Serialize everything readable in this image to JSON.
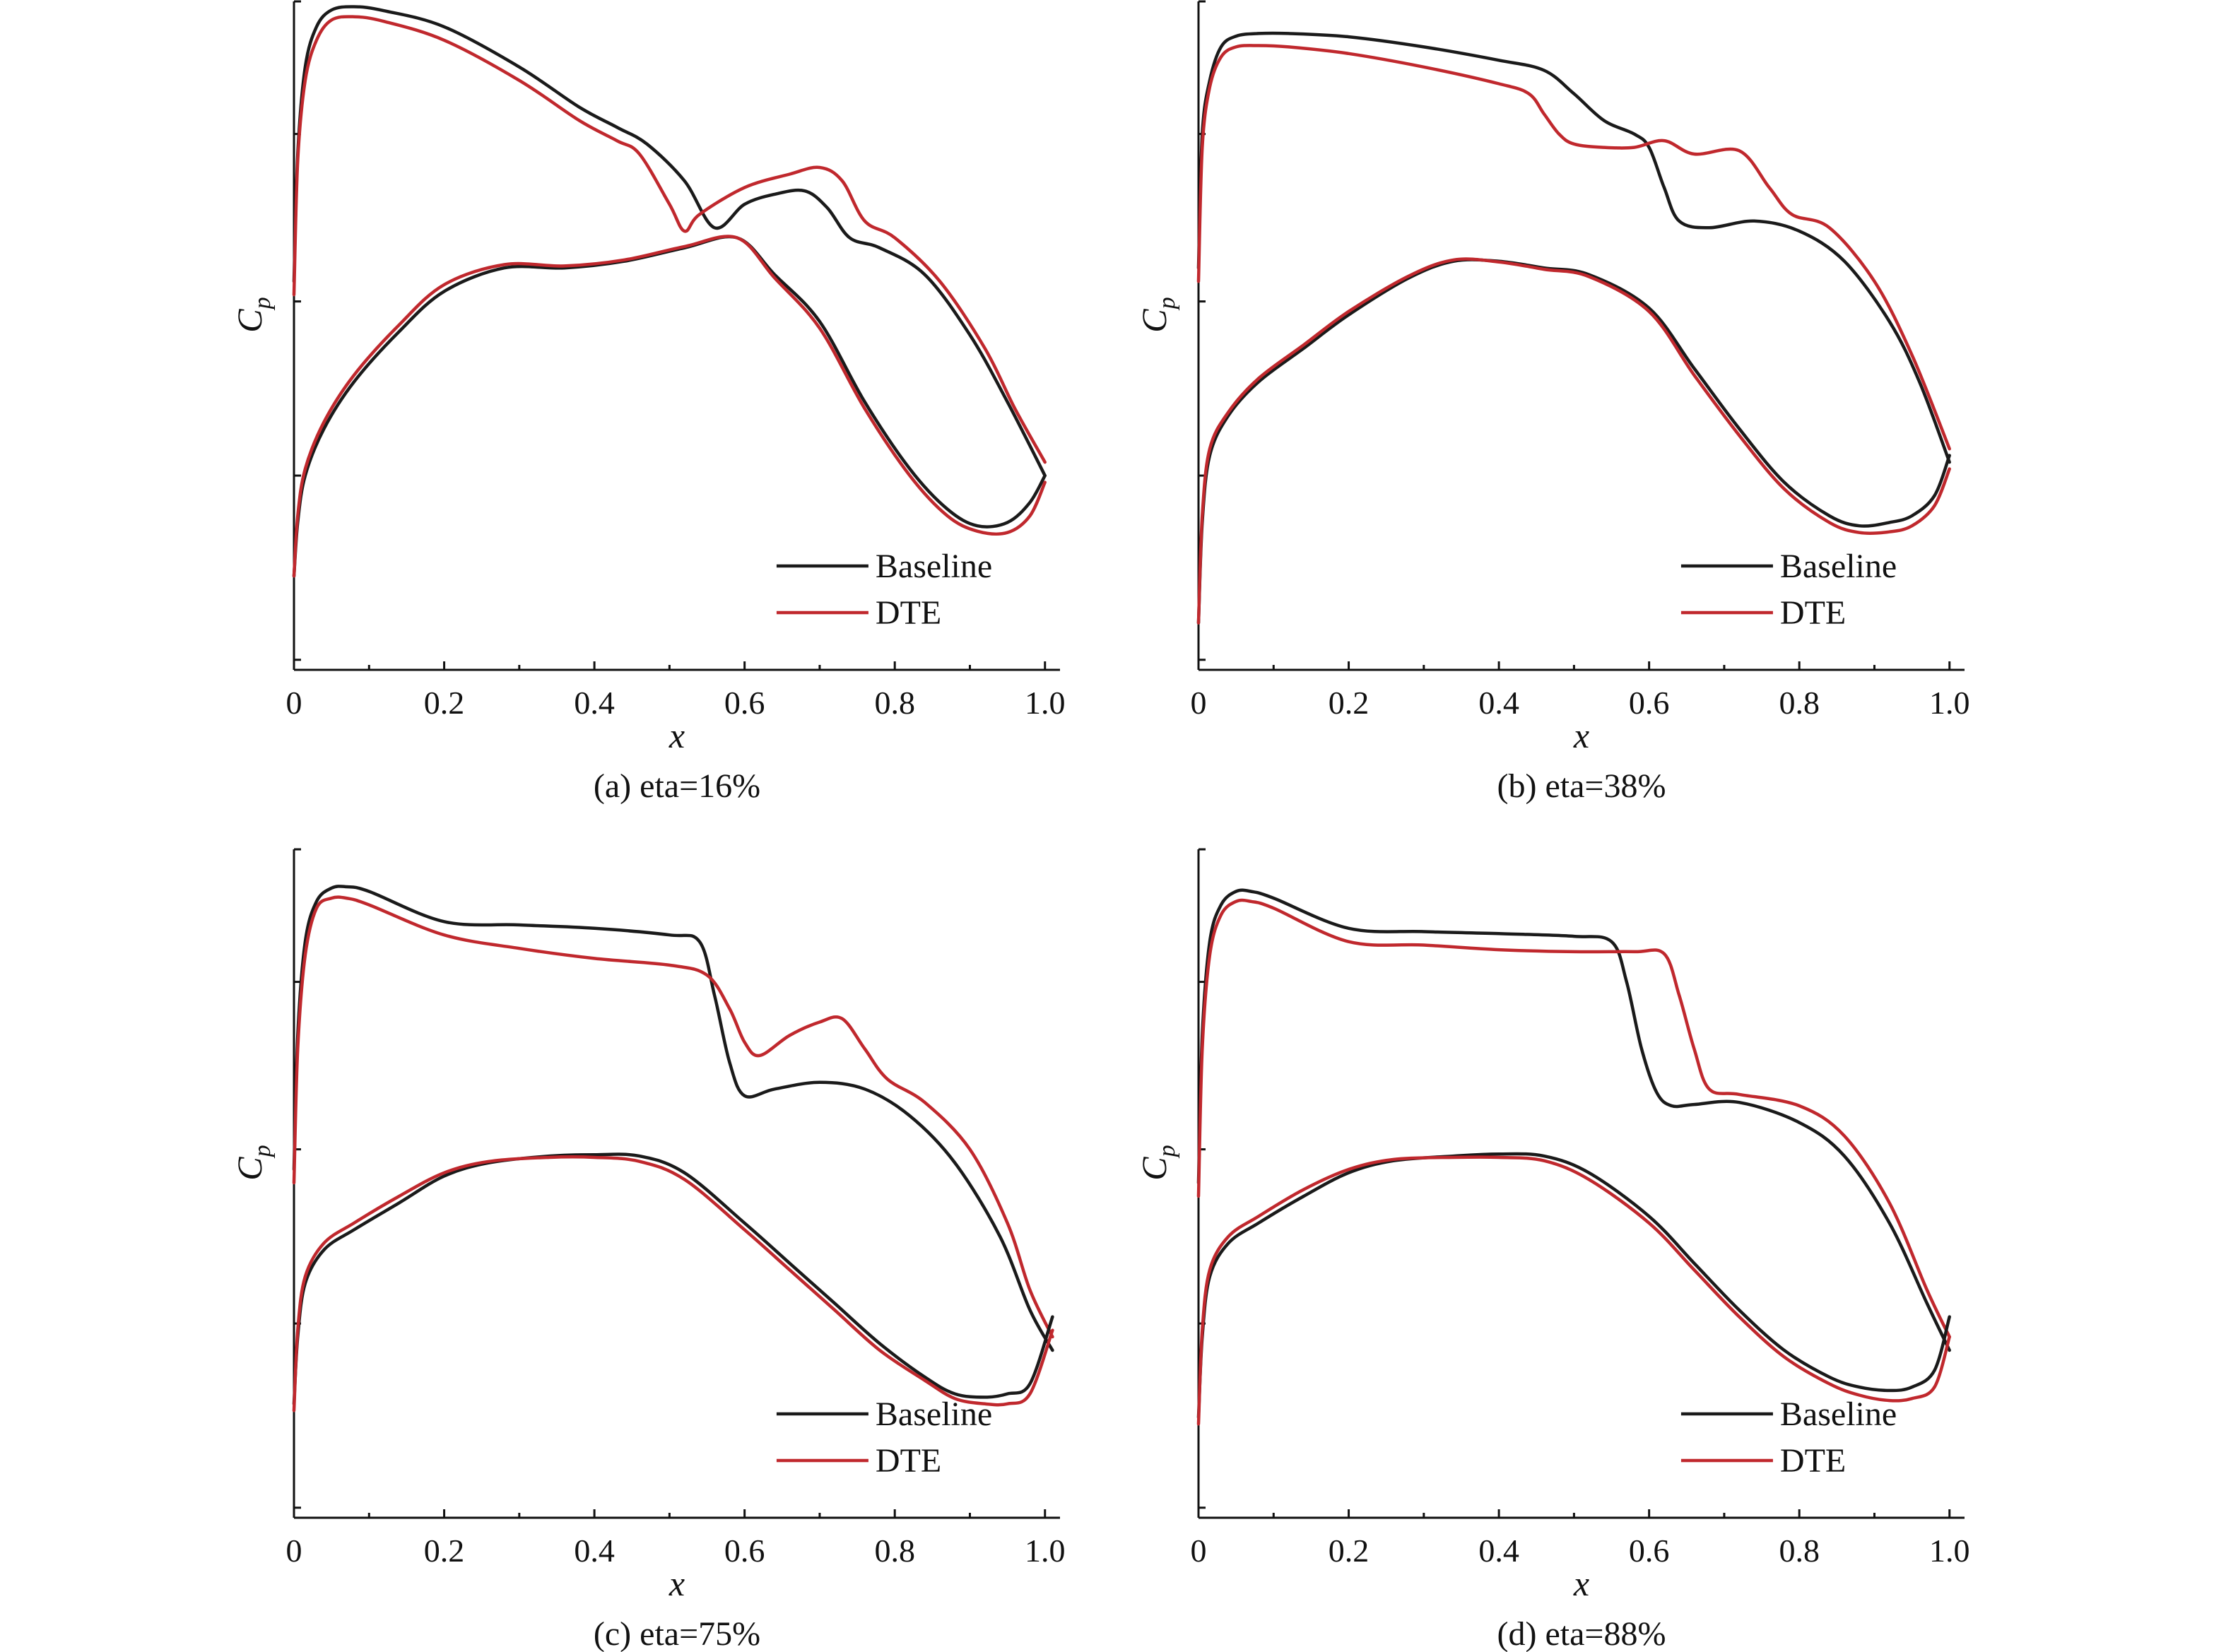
{
  "colors": {
    "baseline": "#1a1a1a",
    "dte": "#c0282d",
    "axis": "#111111"
  },
  "chart_data": [
    {
      "type": "line",
      "title": "(a) eta=16%",
      "xlabel": "x",
      "ylabel": "C",
      "ylabel_sub": "p",
      "xlim": [
        0,
        1.0
      ],
      "ylim": [
        0,
        1
      ],
      "xticks": [
        "0",
        "0.2",
        "0.4",
        "0.6",
        "0.8",
        "1.0"
      ],
      "legend": {
        "position": "bottom-right",
        "entries": [
          "Baseline",
          "DTE"
        ]
      },
      "series": [
        {
          "name": "Baseline",
          "surface": "upper",
          "x": [
            0,
            0.005,
            0.015,
            0.03,
            0.05,
            0.08,
            0.12,
            0.2,
            0.3,
            0.38,
            0.43,
            0.47,
            0.52,
            0.56,
            0.6,
            0.64,
            0.68,
            0.71,
            0.74,
            0.78,
            0.84,
            0.9,
            0.95,
            1.0
          ],
          "y": [
            0.58,
            0.77,
            0.9,
            0.96,
            0.985,
            0.99,
            0.984,
            0.96,
            0.9,
            0.84,
            0.81,
            0.785,
            0.73,
            0.66,
            0.695,
            0.71,
            0.715,
            0.69,
            0.645,
            0.63,
            0.59,
            0.5,
            0.4,
            0.29
          ]
        },
        {
          "name": "DTE",
          "surface": "upper",
          "x": [
            0,
            0.005,
            0.015,
            0.03,
            0.05,
            0.08,
            0.12,
            0.2,
            0.3,
            0.38,
            0.43,
            0.46,
            0.5,
            0.52,
            0.54,
            0.6,
            0.66,
            0.7,
            0.73,
            0.76,
            0.8,
            0.86,
            0.92,
            0.96,
            1.0
          ],
          "y": [
            0.56,
            0.76,
            0.88,
            0.94,
            0.97,
            0.975,
            0.968,
            0.94,
            0.88,
            0.82,
            0.79,
            0.77,
            0.695,
            0.655,
            0.68,
            0.72,
            0.74,
            0.75,
            0.73,
            0.67,
            0.645,
            0.58,
            0.48,
            0.39,
            0.31
          ]
        },
        {
          "name": "Baseline",
          "surface": "lower",
          "x": [
            0,
            0.005,
            0.015,
            0.04,
            0.08,
            0.14,
            0.2,
            0.28,
            0.36,
            0.44,
            0.52,
            0.59,
            0.64,
            0.7,
            0.76,
            0.82,
            0.87,
            0.91,
            0.95,
            0.98,
            1.0
          ],
          "y": [
            0.14,
            0.22,
            0.29,
            0.36,
            0.43,
            0.505,
            0.565,
            0.6,
            0.6,
            0.61,
            0.63,
            0.645,
            0.59,
            0.52,
            0.4,
            0.3,
            0.24,
            0.215,
            0.22,
            0.25,
            0.29
          ]
        },
        {
          "name": "DTE",
          "surface": "lower",
          "x": [
            0,
            0.005,
            0.015,
            0.04,
            0.08,
            0.14,
            0.2,
            0.28,
            0.36,
            0.44,
            0.52,
            0.59,
            0.64,
            0.7,
            0.76,
            0.82,
            0.87,
            0.91,
            0.95,
            0.98,
            1.0
          ],
          "y": [
            0.14,
            0.23,
            0.3,
            0.37,
            0.44,
            0.515,
            0.575,
            0.605,
            0.603,
            0.612,
            0.632,
            0.645,
            0.585,
            0.51,
            0.39,
            0.29,
            0.23,
            0.207,
            0.205,
            0.23,
            0.28
          ]
        }
      ]
    },
    {
      "type": "line",
      "title": "(b) eta=38%",
      "xlabel": "x",
      "ylabel": "C",
      "ylabel_sub": "p",
      "xlim": [
        0,
        1.0
      ],
      "ylim": [
        0,
        1
      ],
      "xticks": [
        "0",
        "0.2",
        "0.4",
        "0.6",
        "0.8",
        "1.0"
      ],
      "legend": {
        "position": "bottom-right",
        "entries": [
          "Baseline",
          "DTE"
        ]
      },
      "series": [
        {
          "name": "Baseline",
          "surface": "upper",
          "x": [
            0,
            0.005,
            0.015,
            0.03,
            0.05,
            0.08,
            0.12,
            0.2,
            0.3,
            0.4,
            0.46,
            0.5,
            0.54,
            0.58,
            0.6,
            0.62,
            0.64,
            0.68,
            0.74,
            0.8,
            0.86,
            0.92,
            0.96,
            1.0
          ],
          "y": [
            0.6,
            0.8,
            0.88,
            0.93,
            0.946,
            0.95,
            0.95,
            0.945,
            0.93,
            0.91,
            0.895,
            0.86,
            0.82,
            0.8,
            0.78,
            0.72,
            0.67,
            0.66,
            0.67,
            0.655,
            0.61,
            0.52,
            0.43,
            0.31
          ]
        },
        {
          "name": "DTE",
          "surface": "upper",
          "x": [
            0,
            0.005,
            0.015,
            0.03,
            0.05,
            0.08,
            0.12,
            0.2,
            0.3,
            0.4,
            0.44,
            0.46,
            0.48,
            0.5,
            0.54,
            0.58,
            0.62,
            0.66,
            0.72,
            0.76,
            0.79,
            0.84,
            0.9,
            0.95,
            1.0
          ],
          "y": [
            0.58,
            0.78,
            0.87,
            0.915,
            0.93,
            0.932,
            0.93,
            0.92,
            0.9,
            0.875,
            0.86,
            0.83,
            0.8,
            0.785,
            0.78,
            0.78,
            0.79,
            0.77,
            0.775,
            0.72,
            0.68,
            0.66,
            0.58,
            0.47,
            0.33
          ]
        },
        {
          "name": "Baseline",
          "surface": "lower",
          "x": [
            0,
            0.005,
            0.015,
            0.04,
            0.08,
            0.14,
            0.2,
            0.28,
            0.34,
            0.4,
            0.46,
            0.52,
            0.6,
            0.66,
            0.72,
            0.78,
            0.84,
            0.88,
            0.92,
            0.95,
            0.98,
            1.0
          ],
          "y": [
            0.07,
            0.22,
            0.32,
            0.38,
            0.43,
            0.48,
            0.53,
            0.585,
            0.61,
            0.61,
            0.6,
            0.59,
            0.54,
            0.45,
            0.36,
            0.28,
            0.23,
            0.215,
            0.22,
            0.23,
            0.26,
            0.32
          ]
        },
        {
          "name": "DTE",
          "surface": "lower",
          "x": [
            0,
            0.005,
            0.015,
            0.04,
            0.08,
            0.14,
            0.2,
            0.28,
            0.34,
            0.4,
            0.46,
            0.52,
            0.6,
            0.66,
            0.72,
            0.78,
            0.84,
            0.88,
            0.92,
            0.95,
            0.98,
            1.0
          ],
          "y": [
            0.07,
            0.23,
            0.33,
            0.385,
            0.435,
            0.485,
            0.535,
            0.588,
            0.612,
            0.609,
            0.598,
            0.587,
            0.535,
            0.44,
            0.35,
            0.27,
            0.22,
            0.205,
            0.206,
            0.215,
            0.245,
            0.3
          ]
        }
      ]
    },
    {
      "type": "line",
      "title": "(c) eta=75%",
      "xlabel": "x",
      "ylabel": "C",
      "ylabel_sub": "p",
      "xlim": [
        0,
        1.0
      ],
      "ylim": [
        0,
        1
      ],
      "xticks": [
        "0",
        "0.2",
        "0.4",
        "0.6",
        "0.8",
        "1.0"
      ],
      "legend": {
        "position": "bottom-right",
        "entries": [
          "Baseline",
          "DTE"
        ]
      },
      "series": [
        {
          "name": "Baseline",
          "surface": "upper",
          "x": [
            0,
            0.005,
            0.015,
            0.03,
            0.05,
            0.07,
            0.1,
            0.2,
            0.3,
            0.4,
            0.5,
            0.54,
            0.56,
            0.58,
            0.6,
            0.64,
            0.7,
            0.76,
            0.82,
            0.88,
            0.94,
            0.98,
            1.01
          ],
          "y": [
            0.52,
            0.72,
            0.86,
            0.92,
            0.94,
            0.942,
            0.935,
            0.89,
            0.885,
            0.88,
            0.87,
            0.86,
            0.78,
            0.68,
            0.63,
            0.64,
            0.65,
            0.64,
            0.6,
            0.53,
            0.42,
            0.31,
            0.25
          ]
        },
        {
          "name": "DTE",
          "surface": "upper",
          "x": [
            0,
            0.005,
            0.015,
            0.03,
            0.05,
            0.07,
            0.1,
            0.2,
            0.3,
            0.4,
            0.5,
            0.55,
            0.58,
            0.6,
            0.62,
            0.66,
            0.7,
            0.73,
            0.76,
            0.79,
            0.84,
            0.9,
            0.95,
            0.98,
            1.01
          ],
          "y": [
            0.5,
            0.7,
            0.84,
            0.91,
            0.925,
            0.925,
            0.915,
            0.87,
            0.85,
            0.835,
            0.825,
            0.81,
            0.76,
            0.71,
            0.69,
            0.72,
            0.74,
            0.745,
            0.7,
            0.655,
            0.62,
            0.55,
            0.44,
            0.34,
            0.27
          ]
        },
        {
          "name": "Baseline",
          "surface": "lower",
          "x": [
            0,
            0.005,
            0.015,
            0.04,
            0.08,
            0.14,
            0.2,
            0.26,
            0.34,
            0.4,
            0.46,
            0.52,
            0.6,
            0.66,
            0.72,
            0.78,
            0.84,
            0.88,
            0.92,
            0.95,
            0.98,
            1.01
          ],
          "y": [
            0.17,
            0.27,
            0.35,
            0.4,
            0.43,
            0.47,
            0.51,
            0.53,
            0.54,
            0.542,
            0.54,
            0.515,
            0.44,
            0.38,
            0.32,
            0.26,
            0.21,
            0.185,
            0.18,
            0.185,
            0.2,
            0.3
          ]
        },
        {
          "name": "DTE",
          "surface": "lower",
          "x": [
            0,
            0.005,
            0.015,
            0.04,
            0.08,
            0.14,
            0.2,
            0.26,
            0.34,
            0.4,
            0.46,
            0.52,
            0.6,
            0.66,
            0.72,
            0.78,
            0.84,
            0.88,
            0.92,
            0.95,
            0.98,
            1.01
          ],
          "y": [
            0.16,
            0.28,
            0.36,
            0.41,
            0.44,
            0.48,
            0.515,
            0.532,
            0.538,
            0.538,
            0.532,
            0.505,
            0.43,
            0.37,
            0.31,
            0.25,
            0.205,
            0.178,
            0.17,
            0.17,
            0.185,
            0.28
          ]
        }
      ]
    },
    {
      "type": "line",
      "title": "(d) eta=88%",
      "xlabel": "x",
      "ylabel": "C",
      "ylabel_sub": "p",
      "xlim": [
        0,
        1.0
      ],
      "ylim": [
        0,
        1
      ],
      "xticks": [
        "0",
        "0.2",
        "0.4",
        "0.6",
        "0.8",
        "1.0"
      ],
      "legend": {
        "position": "bottom-right",
        "entries": [
          "Baseline",
          "DTE"
        ]
      },
      "series": [
        {
          "name": "Baseline",
          "surface": "upper",
          "x": [
            0,
            0.005,
            0.015,
            0.03,
            0.05,
            0.07,
            0.1,
            0.2,
            0.3,
            0.4,
            0.5,
            0.55,
            0.57,
            0.59,
            0.61,
            0.63,
            0.66,
            0.72,
            0.8,
            0.86,
            0.92,
            0.97,
            1.0
          ],
          "y": [
            0.5,
            0.72,
            0.86,
            0.915,
            0.935,
            0.935,
            0.925,
            0.88,
            0.875,
            0.872,
            0.868,
            0.86,
            0.8,
            0.7,
            0.635,
            0.615,
            0.617,
            0.62,
            0.59,
            0.54,
            0.44,
            0.32,
            0.25
          ]
        },
        {
          "name": "DTE",
          "surface": "upper",
          "x": [
            0,
            0.005,
            0.015,
            0.03,
            0.05,
            0.07,
            0.1,
            0.2,
            0.3,
            0.4,
            0.5,
            0.58,
            0.62,
            0.64,
            0.66,
            0.68,
            0.72,
            0.8,
            0.86,
            0.92,
            0.97,
            1.0
          ],
          "y": [
            0.48,
            0.7,
            0.84,
            0.9,
            0.92,
            0.92,
            0.91,
            0.86,
            0.855,
            0.848,
            0.845,
            0.845,
            0.842,
            0.78,
            0.7,
            0.64,
            0.632,
            0.615,
            0.57,
            0.47,
            0.34,
            0.27
          ]
        },
        {
          "name": "Baseline",
          "surface": "lower",
          "x": [
            0,
            0.005,
            0.015,
            0.04,
            0.08,
            0.14,
            0.2,
            0.26,
            0.34,
            0.4,
            0.46,
            0.52,
            0.6,
            0.66,
            0.72,
            0.78,
            0.84,
            0.88,
            0.92,
            0.95,
            0.98,
            1.0
          ],
          "y": [
            0.15,
            0.27,
            0.36,
            0.41,
            0.44,
            0.48,
            0.515,
            0.533,
            0.54,
            0.543,
            0.54,
            0.515,
            0.45,
            0.38,
            0.31,
            0.25,
            0.21,
            0.195,
            0.19,
            0.195,
            0.22,
            0.3
          ]
        },
        {
          "name": "DTE",
          "surface": "lower",
          "x": [
            0,
            0.005,
            0.015,
            0.04,
            0.08,
            0.14,
            0.2,
            0.26,
            0.34,
            0.4,
            0.46,
            0.52,
            0.6,
            0.66,
            0.72,
            0.78,
            0.84,
            0.88,
            0.92,
            0.95,
            0.98,
            1.0
          ],
          "y": [
            0.14,
            0.28,
            0.37,
            0.42,
            0.45,
            0.49,
            0.52,
            0.535,
            0.538,
            0.538,
            0.533,
            0.505,
            0.44,
            0.37,
            0.3,
            0.24,
            0.2,
            0.183,
            0.175,
            0.178,
            0.195,
            0.27
          ]
        }
      ]
    }
  ]
}
